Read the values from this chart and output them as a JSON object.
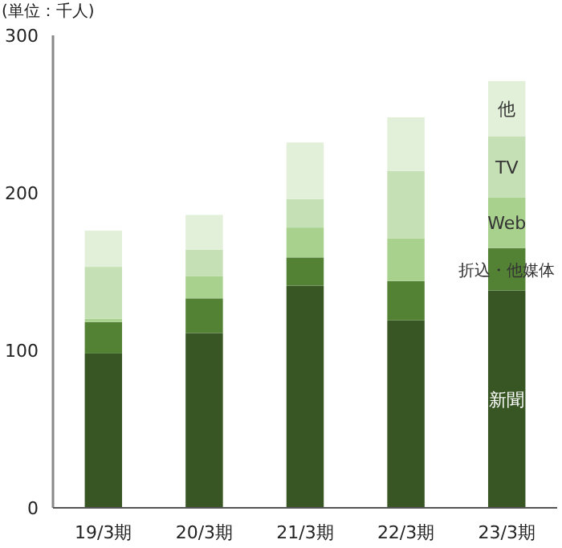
{
  "chart_data": {
    "type": "bar",
    "stacked": true,
    "ylabel": "(単位：千人)",
    "categories": [
      "19/3期",
      "20/3期",
      "21/3期",
      "22/3期",
      "23/3期"
    ],
    "ylim": [
      0,
      300
    ],
    "yticks": [
      0,
      100,
      200,
      300
    ],
    "grid": false,
    "legend": false,
    "series": [
      {
        "name": "新聞",
        "color": "#375623",
        "values": [
          98,
          111,
          141,
          119,
          138
        ]
      },
      {
        "name": "折込・他媒体",
        "color": "#548235",
        "values": [
          20,
          22,
          18,
          25,
          27
        ]
      },
      {
        "name": "Web",
        "color": "#a9d18e",
        "values": [
          2,
          14,
          19,
          27,
          32
        ]
      },
      {
        "name": "TV",
        "color": "#c5e0b4",
        "values": [
          33,
          17,
          18,
          43,
          39
        ]
      },
      {
        "name": "他",
        "color": "#e2f0d9",
        "values": [
          23,
          22,
          36,
          34,
          35
        ]
      }
    ]
  }
}
